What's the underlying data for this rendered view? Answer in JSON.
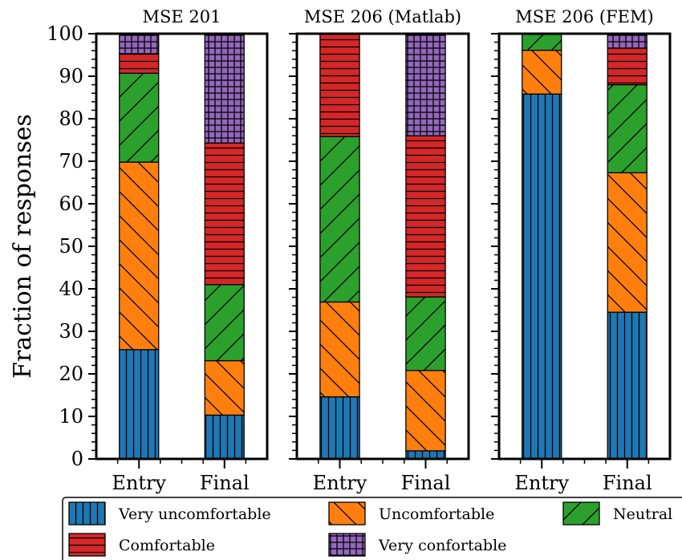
{
  "chart_data": {
    "type": "bar",
    "stacked": true,
    "ylabel": "Fraction of responses",
    "ylim": [
      0,
      100
    ],
    "yticks": [
      0,
      10,
      20,
      30,
      40,
      50,
      60,
      70,
      80,
      90,
      100
    ],
    "legend_placement": "bottom",
    "categories": [
      "Entry",
      "Final"
    ],
    "levels": [
      {
        "name": "Very uncomfortable",
        "color": "#1f77b4",
        "hatch": "vertical"
      },
      {
        "name": "Uncomfortable",
        "color": "#ff7f0e",
        "hatch": "backslash"
      },
      {
        "name": "Neutral",
        "color": "#2ca02c",
        "hatch": "slash"
      },
      {
        "name": "Comfortable",
        "color": "#d62728",
        "hatch": "horizontal"
      },
      {
        "name": "Very confortable",
        "color": "#9467bd",
        "hatch": "grid"
      }
    ],
    "panels": [
      {
        "title": "MSE 201",
        "bars": [
          {
            "category": "Entry",
            "values": [
              25.7,
              44.1,
              20.9,
              4.6,
              4.7
            ]
          },
          {
            "category": "Final",
            "values": [
              10.3,
              12.8,
              17.9,
              33.3,
              25.7
            ]
          }
        ]
      },
      {
        "title": "MSE 206 (Matlab)",
        "bars": [
          {
            "category": "Entry",
            "values": [
              14.6,
              22.3,
              38.9,
              24.2,
              0
            ]
          },
          {
            "category": "Final",
            "values": [
              1.9,
              18.9,
              17.3,
              37.9,
              24.0
            ]
          }
        ]
      },
      {
        "title": "MSE 206 (FEM)",
        "bars": [
          {
            "category": "Entry",
            "values": [
              85.8,
              10.3,
              3.9,
              0,
              0
            ]
          },
          {
            "category": "Final",
            "values": [
              34.5,
              32.8,
              20.7,
              8.6,
              3.4
            ]
          }
        ]
      }
    ]
  }
}
